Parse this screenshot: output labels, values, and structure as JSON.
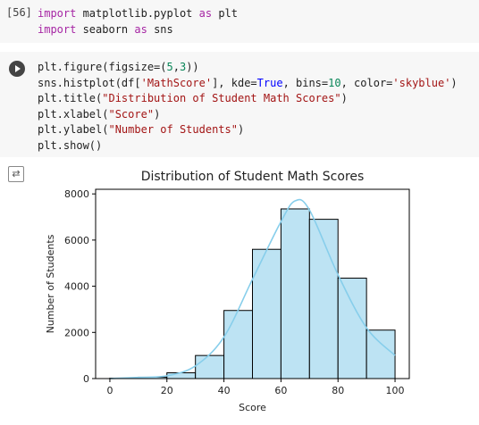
{
  "cell1": {
    "exec_count": "[56]",
    "lines": [
      [
        {
          "t": "import",
          "c": "kw"
        },
        {
          "t": " matplotlib.pyplot "
        },
        {
          "t": "as",
          "c": "kw"
        },
        {
          "t": " plt"
        }
      ],
      [
        {
          "t": "import",
          "c": "kw"
        },
        {
          "t": " seaborn "
        },
        {
          "t": "as",
          "c": "kw"
        },
        {
          "t": " sns"
        }
      ]
    ]
  },
  "cell2": {
    "lines": [
      [
        {
          "t": "plt.figure(figsize=("
        },
        {
          "t": "5",
          "c": "num"
        },
        {
          "t": ","
        },
        {
          "t": "3",
          "c": "num"
        },
        {
          "t": "))"
        }
      ],
      [
        {
          "t": "sns.histplot(df["
        },
        {
          "t": "'MathScore'",
          "c": "str"
        },
        {
          "t": "], kde="
        },
        {
          "t": "True",
          "c": "kwc"
        },
        {
          "t": ", bins="
        },
        {
          "t": "10",
          "c": "num"
        },
        {
          "t": ", color="
        },
        {
          "t": "'skyblue'",
          "c": "str"
        },
        {
          "t": ")"
        }
      ],
      [
        {
          "t": "plt.title("
        },
        {
          "t": "\"Distribution of Student Math Scores\"",
          "c": "str"
        },
        {
          "t": ")"
        }
      ],
      [
        {
          "t": "plt.xlabel("
        },
        {
          "t": "\"Score\"",
          "c": "str"
        },
        {
          "t": ")"
        }
      ],
      [
        {
          "t": "plt.ylabel("
        },
        {
          "t": "\"Number of Students\"",
          "c": "str"
        },
        {
          "t": ")"
        }
      ],
      [
        {
          "t": "plt.show()"
        }
      ]
    ]
  },
  "chart_data": {
    "type": "bar",
    "title": "Distribution of Student Math Scores",
    "xlabel": "Score",
    "ylabel": "Number of Students",
    "bin_edges": [
      0,
      10,
      20,
      30,
      40,
      50,
      60,
      70,
      80,
      90,
      100
    ],
    "values": [
      20,
      60,
      250,
      1000,
      2950,
      5600,
      7350,
      6900,
      4350,
      2100
    ],
    "xlim": [
      -5,
      105
    ],
    "ylim": [
      0,
      8200
    ],
    "xticks": [
      0,
      20,
      40,
      60,
      80,
      100
    ],
    "yticks": [
      0,
      2000,
      4000,
      6000,
      8000
    ],
    "kde": [
      [
        0,
        0
      ],
      [
        10,
        50
      ],
      [
        20,
        120
      ],
      [
        30,
        550
      ],
      [
        40,
        1800
      ],
      [
        50,
        4300
      ],
      [
        60,
        6800
      ],
      [
        65,
        7700
      ],
      [
        70,
        7300
      ],
      [
        80,
        4500
      ],
      [
        90,
        2200
      ],
      [
        100,
        1000
      ]
    ],
    "colors": {
      "bar_fill": "#bde3f3",
      "bar_edge": "#000000",
      "kde": "#87ceeb"
    },
    "grid": false
  }
}
